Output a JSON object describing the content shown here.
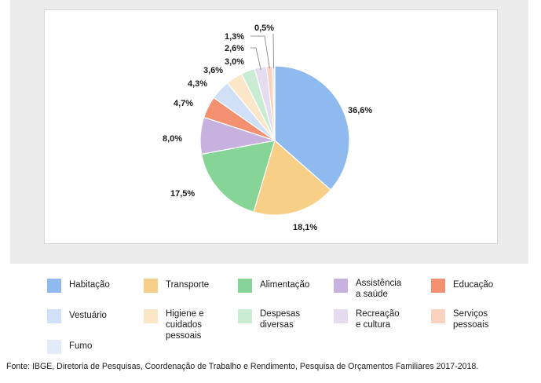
{
  "chart_data": {
    "type": "pie",
    "title": "",
    "series": [
      {
        "name": "Habitação",
        "value": 36.6,
        "label": "36,6%",
        "color": "#8fbaf0"
      },
      {
        "name": "Transporte",
        "value": 18.1,
        "label": "18,1%",
        "color": "#f7cf87"
      },
      {
        "name": "Alimentação",
        "value": 17.5,
        "label": "17,5%",
        "color": "#86d496"
      },
      {
        "name": "Assistência a saúde",
        "value": 8.0,
        "label": "8,0%",
        "color": "#c7b2df"
      },
      {
        "name": "Educação",
        "value": 4.7,
        "label": "4,7%",
        "color": "#f2906f"
      },
      {
        "name": "Vestuário",
        "value": 4.3,
        "label": "4,3%",
        "color": "#cfe0f7"
      },
      {
        "name": "Higiene e cuidados pessoais",
        "value": 3.6,
        "label": "3,6%",
        "color": "#fbe7c8"
      },
      {
        "name": "Despesas diversas",
        "value": 3.0,
        "label": "3,0%",
        "color": "#c9ecd2"
      },
      {
        "name": "Recreação e cultura",
        "value": 2.6,
        "label": "2,6%",
        "color": "#e6dcf0"
      },
      {
        "name": "Serviços pessoais",
        "value": 1.3,
        "label": "1,3%",
        "color": "#f9d2c0"
      },
      {
        "name": "Fumo",
        "value": 0.5,
        "label": "0,5%",
        "color": "#e2ebf7"
      }
    ],
    "legend_position": "bottom"
  },
  "legend": {
    "items": [
      {
        "lines": [
          "Habitação"
        ],
        "color": "#8fbaf0"
      },
      {
        "lines": [
          "Transporte"
        ],
        "color": "#f7cf87"
      },
      {
        "lines": [
          "Alimentação"
        ],
        "color": "#86d496"
      },
      {
        "lines": [
          "Assistência",
          "a saúde"
        ],
        "color": "#c7b2df"
      },
      {
        "lines": [
          "Educação"
        ],
        "color": "#f2906f"
      },
      {
        "lines": [
          "Vestuário"
        ],
        "color": "#cfe0f7"
      },
      {
        "lines": [
          "Higiene e",
          "cuidados",
          "pessoais"
        ],
        "color": "#fbe7c8"
      },
      {
        "lines": [
          "Despesas",
          "diversas"
        ],
        "color": "#c9ecd2"
      },
      {
        "lines": [
          "Recreação",
          "e cultura"
        ],
        "color": "#e6dcf0"
      },
      {
        "lines": [
          "Serviços",
          "pessoais"
        ],
        "color": "#f9d2c0"
      },
      {
        "lines": [
          "Fumo"
        ],
        "color": "#e2ebf7"
      }
    ]
  },
  "source": "Fonte: IBGE, Diretoria de Pesquisas, Coordenação de Trabalho e Rendimento, Pesquisa de Orçamentos Familiares 2017-2018."
}
